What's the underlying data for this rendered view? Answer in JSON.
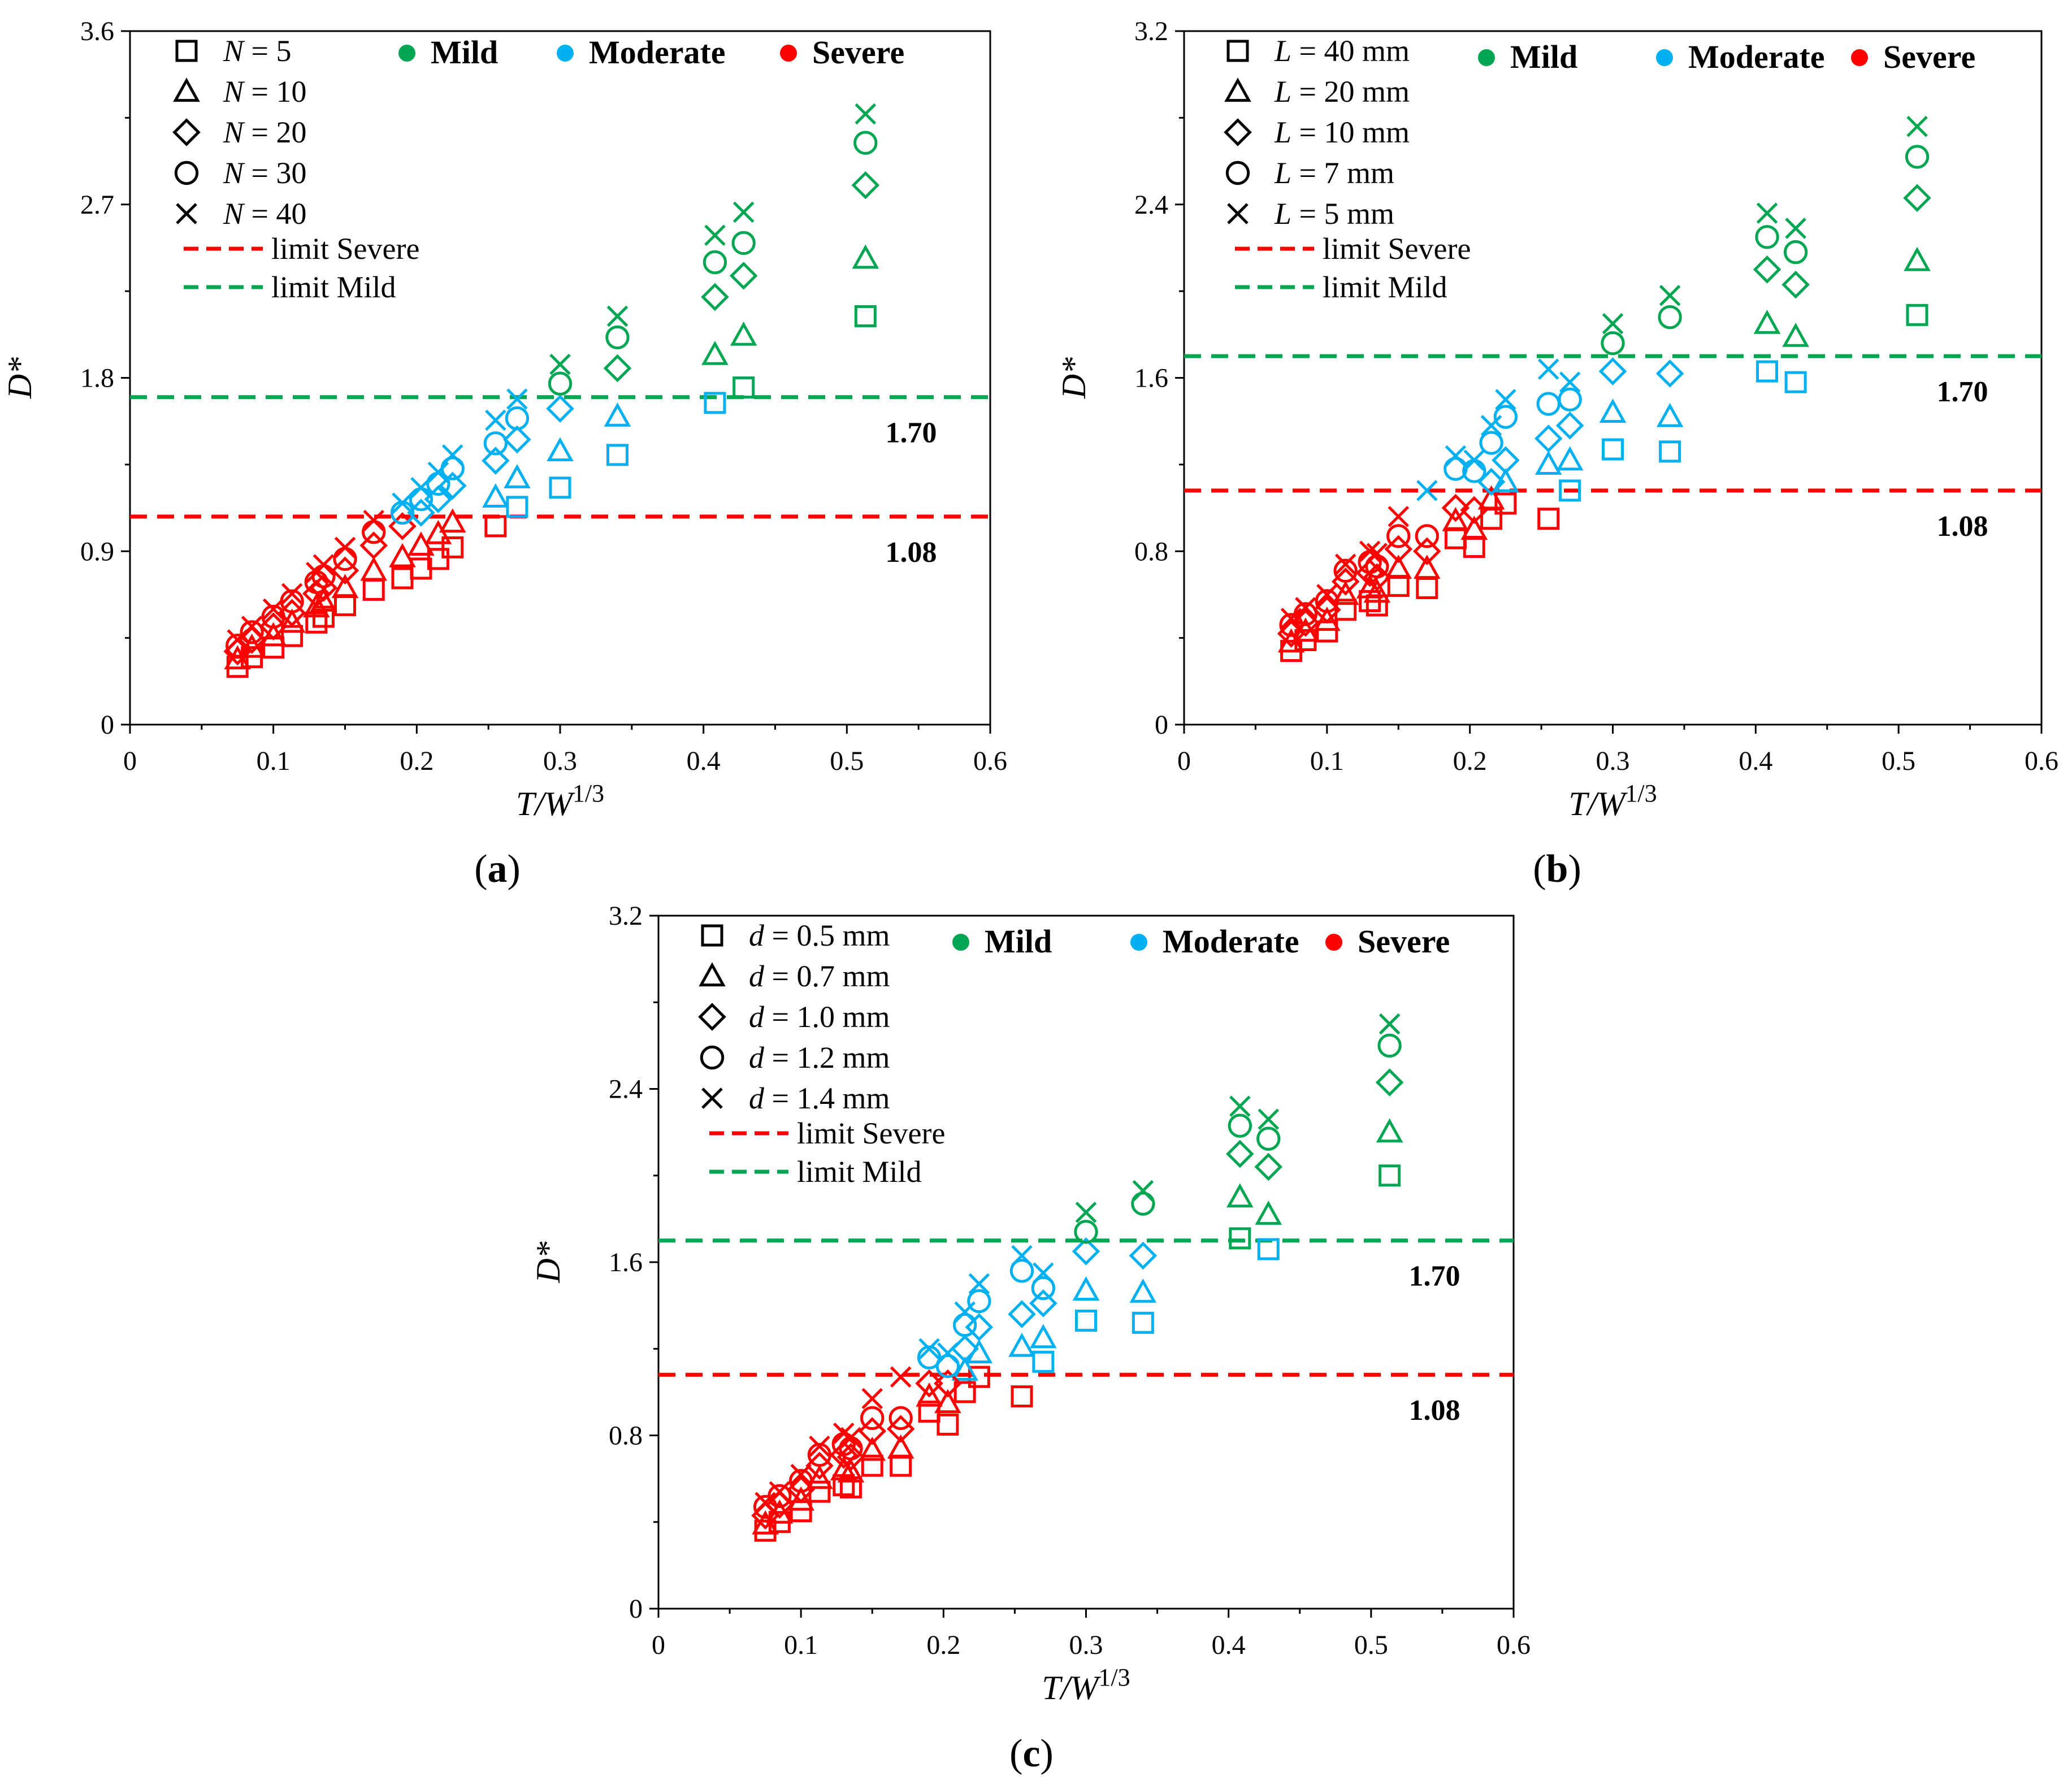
{
  "colors": {
    "mild": "#00a651",
    "moderate": "#00b0f0",
    "severe": "#ff0000",
    "axis": "#000000"
  },
  "legend": {
    "classes": {
      "mild": "Mild",
      "moderate": "Moderate",
      "severe": "Severe"
    },
    "limit_severe": "limit Severe",
    "limit_mild": "limit Mild"
  },
  "thresholds": {
    "severe": 1.08,
    "mild": 1.7,
    "severe_label": "1.08",
    "mild_label": "1.70"
  },
  "tvals": [
    0.075,
    0.085,
    0.1,
    0.113,
    0.13,
    0.135,
    0.15,
    0.17,
    0.19,
    0.203,
    0.215,
    0.225,
    0.255,
    0.27,
    0.3,
    0.34,
    0.408,
    0.428,
    0.513
  ],
  "chart_data": [
    {
      "id": "a",
      "type": "scatter",
      "caption": "(a)",
      "xlabel": "T/W",
      "xlabel_exp": "1/3",
      "ylabel": "D*",
      "xlim": [
        0,
        0.6
      ],
      "ylim": [
        0,
        3.6
      ],
      "xticks": [
        "0",
        "0.1",
        "0.2",
        "0.3",
        "0.4",
        "0.5",
        "0.6"
      ],
      "yticks": [
        "0",
        "0.9",
        "1.8",
        "2.7",
        "3.6"
      ],
      "series": [
        {
          "name": "N = 5",
          "var": "N",
          "val": "= 5",
          "marker": "square",
          "values": [
            0.3,
            0.35,
            0.4,
            0.46,
            0.53,
            0.56,
            0.62,
            0.7,
            0.76,
            0.81,
            0.86,
            0.92,
            1.03,
            1.13,
            1.23,
            1.4,
            1.67,
            1.75,
            2.12
          ]
        },
        {
          "name": "N = 10",
          "var": "N",
          "val": "= 10",
          "marker": "triangle",
          "values": [
            0.34,
            0.4,
            0.46,
            0.53,
            0.61,
            0.64,
            0.71,
            0.8,
            0.87,
            0.93,
            0.99,
            1.05,
            1.18,
            1.28,
            1.42,
            1.6,
            1.92,
            2.02,
            2.42
          ]
        },
        {
          "name": "N = 20",
          "var": "N",
          "val": "= 20",
          "marker": "diamond",
          "values": [
            0.38,
            0.44,
            0.51,
            0.58,
            0.68,
            0.71,
            0.8,
            0.93,
            1.03,
            1.1,
            1.17,
            1.24,
            1.37,
            1.48,
            1.64,
            1.85,
            2.22,
            2.33,
            2.8
          ]
        },
        {
          "name": "N = 30",
          "var": "N",
          "val": "= 30",
          "marker": "circle",
          "values": [
            0.41,
            0.48,
            0.56,
            0.64,
            0.74,
            0.77,
            0.86,
            1.0,
            1.1,
            1.17,
            1.25,
            1.33,
            1.46,
            1.59,
            1.77,
            2.01,
            2.4,
            2.5,
            3.02
          ]
        },
        {
          "name": "N = 40",
          "var": "N",
          "val": "= 40",
          "marker": "cross",
          "values": [
            0.44,
            0.51,
            0.6,
            0.68,
            0.79,
            0.83,
            0.92,
            1.06,
            1.15,
            1.23,
            1.31,
            1.4,
            1.58,
            1.69,
            1.87,
            2.12,
            2.54,
            2.66,
            3.17
          ]
        }
      ]
    },
    {
      "id": "b",
      "type": "scatter",
      "caption": "(b)",
      "xlabel": "T/W",
      "xlabel_exp": "1/3",
      "ylabel": "D*",
      "xlim": [
        0,
        0.6
      ],
      "ylim": [
        0,
        3.2
      ],
      "xticks": [
        "0",
        "0.1",
        "0.2",
        "0.3",
        "0.4",
        "0.5",
        "0.6"
      ],
      "yticks": [
        "0",
        "0.8",
        "1.6",
        "2.4",
        "3.2"
      ],
      "series": [
        {
          "name": "L = 40 mm",
          "var": "L",
          "val": "= 40 mm",
          "marker": "square",
          "values": [
            0.34,
            0.39,
            0.43,
            0.53,
            0.57,
            0.55,
            0.64,
            0.63,
            0.86,
            0.82,
            0.95,
            1.02,
            0.95,
            1.08,
            1.27,
            1.26,
            1.63,
            1.58,
            1.89
          ]
        },
        {
          "name": "L = 20 mm",
          "var": "L",
          "val": "= 20 mm",
          "marker": "triangle",
          "values": [
            0.38,
            0.43,
            0.48,
            0.6,
            0.63,
            0.61,
            0.72,
            0.72,
            0.94,
            0.9,
            1.04,
            1.12,
            1.2,
            1.22,
            1.44,
            1.42,
            1.85,
            1.79,
            2.14
          ]
        },
        {
          "name": "L = 10 mm",
          "var": "L",
          "val": "= 10 mm",
          "marker": "diamond",
          "values": [
            0.42,
            0.47,
            0.53,
            0.66,
            0.7,
            0.68,
            0.81,
            0.8,
            1.0,
            0.99,
            1.12,
            1.22,
            1.32,
            1.38,
            1.63,
            1.62,
            2.1,
            2.03,
            2.43
          ]
        },
        {
          "name": "L = 7 mm",
          "var": "L",
          "val": "= 7 mm",
          "marker": "circle",
          "values": [
            0.46,
            0.51,
            0.57,
            0.71,
            0.75,
            0.73,
            0.87,
            0.87,
            1.18,
            1.17,
            1.3,
            1.42,
            1.48,
            1.5,
            1.76,
            1.88,
            2.25,
            2.18,
            2.62
          ]
        },
        {
          "name": "L = 5 mm",
          "var": "L",
          "val": "= 5 mm",
          "marker": "cross",
          "values": [
            0.49,
            0.54,
            0.6,
            0.74,
            0.8,
            0.79,
            0.96,
            1.08,
            1.24,
            1.22,
            1.38,
            1.5,
            1.64,
            1.58,
            1.85,
            1.98,
            2.36,
            2.29,
            2.76
          ]
        }
      ]
    },
    {
      "id": "c",
      "type": "scatter",
      "caption": "(c)",
      "xlabel": "T/W",
      "xlabel_exp": "1/3",
      "ylabel": "D*",
      "xlim": [
        0,
        0.6
      ],
      "ylim": [
        0,
        3.2
      ],
      "xticks": [
        "0",
        "0.1",
        "0.2",
        "0.3",
        "0.4",
        "0.5",
        "0.6"
      ],
      "yticks": [
        "0",
        "0.8",
        "1.6",
        "2.4",
        "3.2"
      ],
      "series": [
        {
          "name": "d = 0.5 mm",
          "var": "d",
          "val": "= 0.5 mm",
          "marker": "square",
          "values": [
            0.36,
            0.4,
            0.45,
            0.54,
            0.57,
            0.56,
            0.66,
            0.66,
            0.91,
            0.85,
            1.0,
            1.07,
            0.98,
            1.14,
            1.33,
            1.32,
            1.71,
            1.66,
            2.0
          ]
        },
        {
          "name": "d = 0.7 mm",
          "var": "d",
          "val": "= 0.7 mm",
          "marker": "triangle",
          "values": [
            0.39,
            0.44,
            0.5,
            0.6,
            0.64,
            0.63,
            0.73,
            0.74,
            0.98,
            0.95,
            1.1,
            1.18,
            1.21,
            1.25,
            1.47,
            1.46,
            1.9,
            1.82,
            2.2
          ]
        },
        {
          "name": "d = 1.0 mm",
          "var": "d",
          "val": "= 1.0 mm",
          "marker": "diamond",
          "values": [
            0.43,
            0.48,
            0.55,
            0.66,
            0.71,
            0.7,
            0.82,
            0.83,
            1.04,
            1.04,
            1.2,
            1.3,
            1.36,
            1.41,
            1.65,
            1.63,
            2.1,
            2.04,
            2.43
          ]
        },
        {
          "name": "d = 1.2 mm",
          "var": "d",
          "val": "= 1.2 mm",
          "marker": "circle",
          "values": [
            0.47,
            0.52,
            0.59,
            0.71,
            0.76,
            0.74,
            0.88,
            0.88,
            1.16,
            1.12,
            1.31,
            1.42,
            1.56,
            1.48,
            1.74,
            1.87,
            2.23,
            2.17,
            2.6
          ]
        },
        {
          "name": "d = 1.4 mm",
          "var": "d",
          "val": "= 1.4 mm",
          "marker": "cross",
          "values": [
            0.49,
            0.54,
            0.62,
            0.75,
            0.81,
            0.79,
            0.97,
            1.07,
            1.2,
            1.18,
            1.37,
            1.5,
            1.63,
            1.55,
            1.83,
            1.93,
            2.32,
            2.26,
            2.7
          ]
        }
      ]
    }
  ]
}
